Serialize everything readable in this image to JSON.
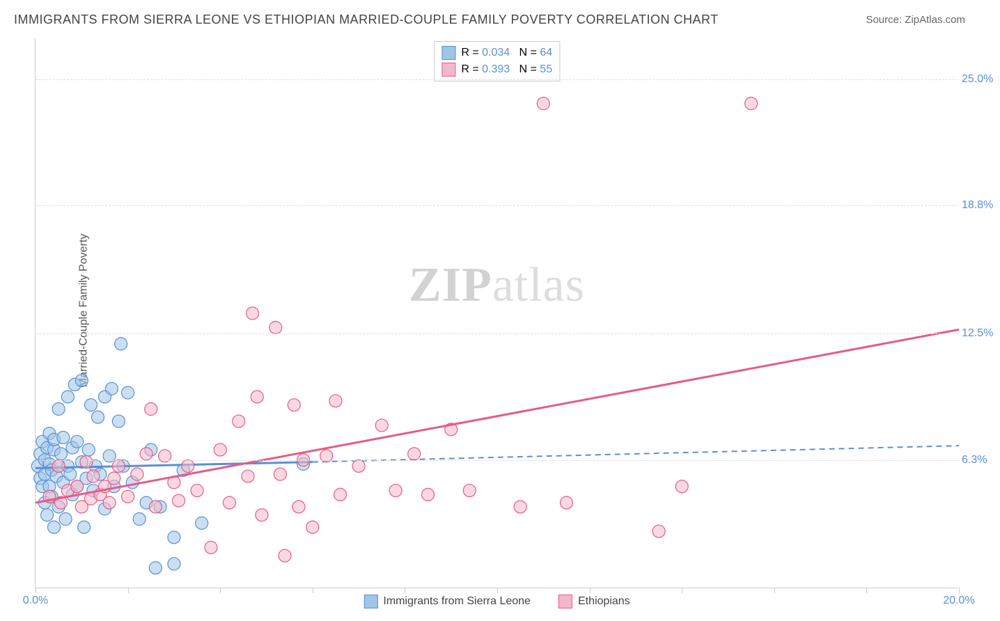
{
  "title": "IMMIGRANTS FROM SIERRA LEONE VS ETHIOPIAN MARRIED-COUPLE FAMILY POVERTY CORRELATION CHART",
  "source_label": "Source: ZipAtlas.com",
  "y_axis_label": "Married-Couple Family Poverty",
  "watermark_bold": "ZIP",
  "watermark_rest": "atlas",
  "chart": {
    "type": "scatter",
    "background_color": "#ffffff",
    "grid_color": "#dddddd",
    "axis_color": "#cccccc",
    "tick_label_color": "#5a8fd6",
    "xlim": [
      0,
      20
    ],
    "ylim": [
      0,
      27
    ],
    "x_ticks": [
      0,
      2,
      4,
      6,
      8,
      10,
      12,
      14,
      16,
      18,
      20
    ],
    "x_tick_labels": {
      "0": "0.0%",
      "20": "20.0%"
    },
    "y_gridlines": [
      6.3,
      12.5,
      18.8,
      25.0
    ],
    "y_tick_labels": [
      "6.3%",
      "12.5%",
      "18.8%",
      "25.0%"
    ],
    "marker_radius": 9,
    "marker_opacity": 0.55,
    "series": [
      {
        "name": "Immigrants from Sierra Leone",
        "color_fill": "#9ec5e8",
        "color_stroke": "#5a8fd6",
        "R": "0.034",
        "N": "64",
        "regression": {
          "x1": 0,
          "y1": 5.9,
          "x2": 6.0,
          "y2": 6.2,
          "ext_x2": 20,
          "ext_y2": 7.0,
          "width_solid": 3,
          "width_dash": 2
        },
        "points": [
          [
            0.05,
            6.0
          ],
          [
            0.1,
            5.4
          ],
          [
            0.1,
            6.6
          ],
          [
            0.15,
            5.0
          ],
          [
            0.15,
            7.2
          ],
          [
            0.2,
            4.2
          ],
          [
            0.2,
            6.3
          ],
          [
            0.2,
            5.6
          ],
          [
            0.25,
            6.9
          ],
          [
            0.25,
            3.6
          ],
          [
            0.3,
            7.6
          ],
          [
            0.3,
            5.0
          ],
          [
            0.3,
            6.1
          ],
          [
            0.35,
            4.5
          ],
          [
            0.35,
            5.8
          ],
          [
            0.4,
            6.8
          ],
          [
            0.4,
            3.0
          ],
          [
            0.4,
            7.3
          ],
          [
            0.45,
            5.5
          ],
          [
            0.5,
            6.0
          ],
          [
            0.5,
            4.0
          ],
          [
            0.5,
            8.8
          ],
          [
            0.55,
            6.6
          ],
          [
            0.6,
            5.2
          ],
          [
            0.6,
            7.4
          ],
          [
            0.65,
            3.4
          ],
          [
            0.7,
            6.0
          ],
          [
            0.7,
            9.4
          ],
          [
            0.75,
            5.6
          ],
          [
            0.8,
            6.9
          ],
          [
            0.8,
            4.6
          ],
          [
            0.85,
            10.0
          ],
          [
            0.9,
            5.0
          ],
          [
            0.9,
            7.2
          ],
          [
            1.0,
            6.2
          ],
          [
            1.0,
            10.2
          ],
          [
            1.05,
            3.0
          ],
          [
            1.1,
            5.4
          ],
          [
            1.15,
            6.8
          ],
          [
            1.2,
            9.0
          ],
          [
            1.25,
            4.8
          ],
          [
            1.3,
            6.0
          ],
          [
            1.35,
            8.4
          ],
          [
            1.4,
            5.6
          ],
          [
            1.5,
            9.4
          ],
          [
            1.5,
            3.9
          ],
          [
            1.6,
            6.5
          ],
          [
            1.65,
            9.8
          ],
          [
            1.7,
            5.0
          ],
          [
            1.8,
            8.2
          ],
          [
            1.85,
            12.0
          ],
          [
            1.9,
            6.0
          ],
          [
            2.0,
            9.6
          ],
          [
            2.1,
            5.2
          ],
          [
            2.25,
            3.4
          ],
          [
            2.4,
            4.2
          ],
          [
            2.5,
            6.8
          ],
          [
            2.6,
            1.0
          ],
          [
            2.7,
            4.0
          ],
          [
            3.0,
            2.5
          ],
          [
            3.2,
            5.8
          ],
          [
            3.6,
            3.2
          ],
          [
            3.0,
            1.2
          ],
          [
            5.8,
            6.1
          ]
        ]
      },
      {
        "name": "Ethiopians",
        "color_fill": "#f5b8c8",
        "color_stroke": "#e85a85",
        "R": "0.393",
        "N": "55",
        "regression": {
          "x1": 0,
          "y1": 4.2,
          "x2": 20,
          "y2": 12.7,
          "width_solid": 3
        },
        "points": [
          [
            0.3,
            4.5
          ],
          [
            0.5,
            6.0
          ],
          [
            0.55,
            4.2
          ],
          [
            0.7,
            4.8
          ],
          [
            0.9,
            5.0
          ],
          [
            1.0,
            4.0
          ],
          [
            1.1,
            6.2
          ],
          [
            1.2,
            4.4
          ],
          [
            1.25,
            5.5
          ],
          [
            1.4,
            4.6
          ],
          [
            1.5,
            5.0
          ],
          [
            1.6,
            4.2
          ],
          [
            1.7,
            5.4
          ],
          [
            1.8,
            6.0
          ],
          [
            2.0,
            4.5
          ],
          [
            2.2,
            5.6
          ],
          [
            2.4,
            6.6
          ],
          [
            2.5,
            8.8
          ],
          [
            2.6,
            4.0
          ],
          [
            2.8,
            6.5
          ],
          [
            3.0,
            5.2
          ],
          [
            3.1,
            4.3
          ],
          [
            3.3,
            6.0
          ],
          [
            3.5,
            4.8
          ],
          [
            3.8,
            2.0
          ],
          [
            4.0,
            6.8
          ],
          [
            4.2,
            4.2
          ],
          [
            4.4,
            8.2
          ],
          [
            4.6,
            5.5
          ],
          [
            4.7,
            13.5
          ],
          [
            4.8,
            9.4
          ],
          [
            4.9,
            3.6
          ],
          [
            5.2,
            12.8
          ],
          [
            5.3,
            5.6
          ],
          [
            5.4,
            1.6
          ],
          [
            5.6,
            9.0
          ],
          [
            5.7,
            4.0
          ],
          [
            5.8,
            6.3
          ],
          [
            6.0,
            3.0
          ],
          [
            6.3,
            6.5
          ],
          [
            6.5,
            9.2
          ],
          [
            6.6,
            4.6
          ],
          [
            7.0,
            6.0
          ],
          [
            7.5,
            8.0
          ],
          [
            7.8,
            4.8
          ],
          [
            8.2,
            6.6
          ],
          [
            8.5,
            4.6
          ],
          [
            9.0,
            7.8
          ],
          [
            9.4,
            4.8
          ],
          [
            10.5,
            4.0
          ],
          [
            11.0,
            23.8
          ],
          [
            11.5,
            4.2
          ],
          [
            13.5,
            2.8
          ],
          [
            14.0,
            5.0
          ],
          [
            15.5,
            23.8
          ]
        ]
      }
    ]
  },
  "legend_top_labels": {
    "R_prefix": "R = ",
    "N_prefix": "N = "
  },
  "legend_bottom": [
    {
      "label": "Immigrants from Sierra Leone",
      "fill": "#9ec5e8",
      "stroke": "#5a8fd6"
    },
    {
      "label": "Ethiopians",
      "fill": "#f5b8c8",
      "stroke": "#e85a85"
    }
  ]
}
